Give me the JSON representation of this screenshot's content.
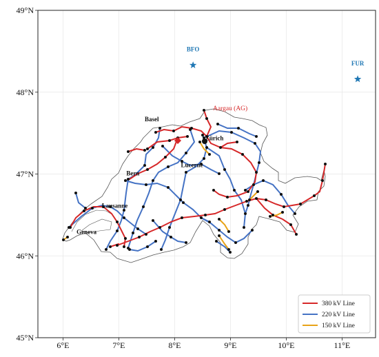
{
  "axes": {
    "y_ticks": [
      {
        "value": 49,
        "label": "49°N"
      },
      {
        "value": 48,
        "label": "48°N"
      },
      {
        "value": 47,
        "label": "47°N"
      },
      {
        "value": 46,
        "label": "46°N"
      },
      {
        "value": 45,
        "label": "45°N"
      }
    ],
    "x_ticks": [
      {
        "value": 6,
        "label": "6°E"
      },
      {
        "value": 7,
        "label": "7°E"
      },
      {
        "value": 8,
        "label": "8°E"
      },
      {
        "value": 9,
        "label": "9°E"
      },
      {
        "value": 10,
        "label": "10°E"
      },
      {
        "value": 11,
        "label": "11°E"
      }
    ],
    "xlim": [
      5.55,
      11.6
    ],
    "ylim": [
      45,
      49
    ],
    "grid": true
  },
  "cities": [
    {
      "name": "Basel",
      "lon": 7.59,
      "lat": 47.56
    },
    {
      "name": "Zürich",
      "lon": 8.54,
      "lat": 47.38
    },
    {
      "name": "Lucerne",
      "lon": 8.31,
      "lat": 47.05
    },
    {
      "name": "Bern",
      "lon": 7.45,
      "lat": 46.95
    },
    {
      "name": "Lausanne",
      "lon": 6.63,
      "lat": 46.52
    },
    {
      "name": "Geneva",
      "lon": 6.15,
      "lat": 46.2
    }
  ],
  "region_label": {
    "text": "Aargau (AG)",
    "color": "#d62728"
  },
  "stations": [
    {
      "code": "BFO",
      "lon": 8.33,
      "lat": 48.33
    },
    {
      "code": "FUR",
      "lon": 11.28,
      "lat": 48.16
    }
  ],
  "legend": {
    "position": "lower-right",
    "entries": [
      {
        "label": "380 kV Line",
        "color": "#d62728"
      },
      {
        "label": "220 kV Line",
        "color": "#4472c4"
      },
      {
        "label": "150 kV Line",
        "color": "#e8a317"
      }
    ]
  },
  "colors": {
    "station": "#1f77b4",
    "line380": "#d62728",
    "line220": "#4472c4",
    "line150": "#e8a317",
    "border": "#555555",
    "node": "#111111"
  }
}
